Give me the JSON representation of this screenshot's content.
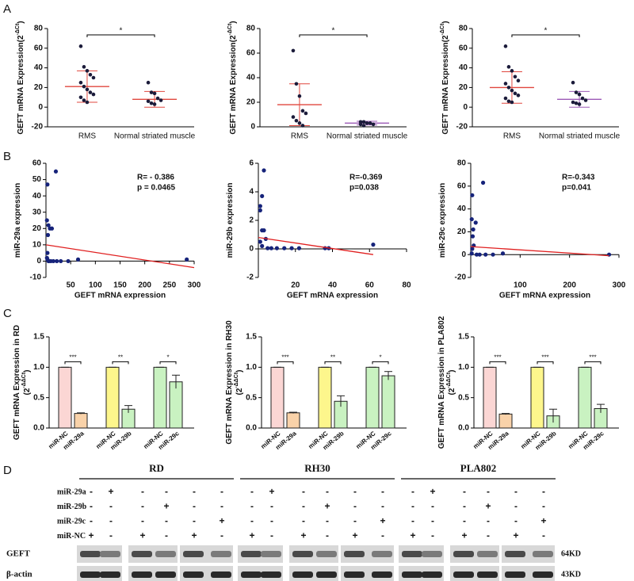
{
  "panel_labels": [
    "A",
    "B",
    "C",
    "D"
  ],
  "chart_data": [
    {
      "type": "dot",
      "ylabel": [
        [
          "GEFT mRNA Expression(2",
          "-ΔCt",
          ")"
        ]
      ],
      "ylim": [
        -20,
        80
      ],
      "yticks": [
        -20,
        0,
        20,
        40,
        60,
        80
      ],
      "significance": "*",
      "point_color": "#1b1b3a",
      "groups": [
        {
          "label": "RMS",
          "color": "#e0473e",
          "values": [
            62,
            41,
            37,
            33,
            30,
            25,
            21,
            18,
            15,
            13,
            10,
            7,
            5
          ],
          "mean": 21,
          "sd": 16
        },
        {
          "label": "Normal striated muscle",
          "color": "#e0473e",
          "values": [
            25,
            15,
            14,
            9,
            7,
            6,
            4,
            3
          ],
          "mean": 8,
          "sd": 8
        }
      ]
    },
    {
      "type": "dot",
      "ylabel": [
        [
          "GEFT mRNA Expression(2",
          "-ΔCt",
          ")"
        ]
      ],
      "ylim": [
        0,
        80
      ],
      "yticks": [
        0,
        20,
        40,
        60,
        80
      ],
      "significance": "*",
      "point_color": "#1b1b3a",
      "groups": [
        {
          "label": "RMS",
          "color": "#e0473e",
          "values": [
            62,
            35,
            25,
            13,
            11,
            8,
            5,
            3,
            1
          ],
          "mean": 18,
          "sd": 17
        },
        {
          "label": "Normal striated muscle",
          "color": "#9b59b6",
          "values": [
            4,
            4,
            3,
            3,
            2,
            2,
            1
          ],
          "mean": 3,
          "sd": 1.5
        }
      ]
    },
    {
      "type": "dot",
      "ylabel": [
        [
          "GEFT mRNA Expression(2",
          "-ΔCt",
          ")"
        ]
      ],
      "ylim": [
        -20,
        80
      ],
      "yticks": [
        -20,
        0,
        20,
        40,
        60,
        80
      ],
      "significance": "*",
      "point_color": "#1b1b3a",
      "groups": [
        {
          "label": "RMS",
          "color": "#e0473e",
          "values": [
            62,
            41,
            37,
            31,
            27,
            24,
            20,
            17,
            14,
            12,
            9,
            6,
            5
          ],
          "mean": 20,
          "sd": 16
        },
        {
          "label": "Normal striated muscle",
          "color": "#9b59b6",
          "values": [
            25,
            15,
            13,
            9,
            7,
            5,
            4,
            3
          ],
          "mean": 8,
          "sd": 8
        }
      ]
    },
    {
      "type": "scatter",
      "xlabel": "GEFT mRNA expression",
      "ylabel": [
        [
          "miR-29a expression"
        ]
      ],
      "annotations": [
        "R= - 0.386",
        "p = 0.0465"
      ],
      "xlim": [
        0,
        300
      ],
      "xticks": [
        50,
        100,
        150,
        200,
        250,
        300
      ],
      "ylim": [
        -10,
        60
      ],
      "yticks": [
        -10,
        0,
        10,
        20,
        30,
        40,
        50,
        60
      ],
      "color": "#16237a",
      "fit_color": "#e02020",
      "x": [
        2,
        3,
        4,
        5,
        3,
        8,
        12,
        20,
        2,
        3,
        5,
        6,
        10,
        15,
        22,
        30,
        45,
        65,
        285
      ],
      "y": [
        25,
        47,
        16,
        22,
        5,
        20,
        20,
        55,
        2,
        1,
        0,
        0,
        0,
        0,
        0,
        0,
        0,
        1,
        1
      ],
      "fit": {
        "x": [
          0,
          300
        ],
        "y": [
          10,
          -4
        ]
      }
    },
    {
      "type": "scatter",
      "xlabel": "GEFT mRNA expression",
      "ylabel": [
        [
          "miR-29b expression"
        ]
      ],
      "annotations": [
        "R=-0.369",
        "p=0.038"
      ],
      "xlim": [
        0,
        80
      ],
      "xticks": [
        20,
        40,
        60,
        80
      ],
      "ylim": [
        -2,
        6
      ],
      "yticks": [
        -2,
        0,
        2,
        4,
        6
      ],
      "color": "#16237a",
      "fit_color": "#e02020",
      "x": [
        3,
        2,
        1,
        1,
        2,
        3,
        4,
        1,
        2,
        5,
        7,
        10,
        14,
        18,
        22,
        36,
        38,
        62
      ],
      "y": [
        5.5,
        3.7,
        3.0,
        2.7,
        1.3,
        1.3,
        0.7,
        0.5,
        0.2,
        0.05,
        0.05,
        0.05,
        0.05,
        0.05,
        0.05,
        0.05,
        0.05,
        0.3
      ],
      "fit": {
        "x": [
          0,
          62
        ],
        "y": [
          0.8,
          -0.4
        ]
      }
    },
    {
      "type": "scatter",
      "xlabel": "GEFT mRNA expression",
      "ylabel": [
        [
          "miR-29c expression"
        ]
      ],
      "annotations": [
        "R=-0.343",
        "p=0.041"
      ],
      "xlim": [
        0,
        300
      ],
      "xticks": [
        100,
        200,
        300
      ],
      "ylim": [
        -20,
        80
      ],
      "yticks": [
        -20,
        0,
        20,
        40,
        60,
        80
      ],
      "color": "#16237a",
      "fit_color": "#e02020",
      "x": [
        2,
        3,
        5,
        4,
        10,
        25,
        6,
        3,
        2,
        12,
        18,
        30,
        45,
        65,
        280
      ],
      "y": [
        31,
        52,
        22,
        16,
        28,
        63,
        8,
        5,
        1,
        0,
        0,
        0,
        0,
        1,
        0
      ],
      "fit": {
        "x": [
          0,
          280
        ],
        "y": [
          7,
          -1
        ]
      }
    },
    {
      "type": "bar",
      "ylabel": [
        [
          "GEFT mRNA Expression in RD"
        ],
        [
          "(2",
          "-ΔΔCt",
          ")"
        ]
      ],
      "ylim": [
        0,
        1.5
      ],
      "yticks": [
        {
          "value": 0,
          "label": "0.0"
        },
        {
          "value": 0.5,
          "label": "0.5"
        },
        {
          "value": 1,
          "label": "1.0"
        },
        {
          "value": 1.5,
          "label": "1.5"
        }
      ],
      "categories": [
        "miR-NC",
        "miR-29a",
        "miR-NC",
        "miR-29b",
        "miR-NC",
        "miR-29c"
      ],
      "colors": [
        "#fbd6d4",
        "#f9d2a9",
        "#fdf68c",
        "#c9f2c1",
        "#c9f2c1",
        "#c9f2c1"
      ],
      "values": [
        1.0,
        0.24,
        1.0,
        0.31,
        1.0,
        0.76
      ],
      "errors": [
        0,
        0.01,
        0,
        0.06,
        0,
        0.11
      ],
      "significance": [
        "***",
        "**",
        "*"
      ]
    },
    {
      "type": "bar",
      "ylabel": [
        [
          "GEFT mRNA Expression in RH30"
        ],
        [
          "(2",
          "-ΔΔCt",
          ")"
        ]
      ],
      "ylim": [
        0,
        1.5
      ],
      "yticks": [
        {
          "value": 0,
          "label": "0.0"
        },
        {
          "value": 0.5,
          "label": "0.5"
        },
        {
          "value": 1,
          "label": "1.0"
        },
        {
          "value": 1.5,
          "label": "1.5"
        }
      ],
      "categories": [
        "miR-NC",
        "miR-29a",
        "miR-NC",
        "miR-29b",
        "miR-NC",
        "miR-29c"
      ],
      "colors": [
        "#fbd6d4",
        "#f9d2a9",
        "#fdf68c",
        "#c9f2c1",
        "#c9f2c1",
        "#c9f2c1"
      ],
      "values": [
        1.0,
        0.25,
        1.0,
        0.44,
        1.0,
        0.86
      ],
      "errors": [
        0,
        0.01,
        0,
        0.09,
        0,
        0.07
      ],
      "significance": [
        "***",
        "**",
        "*"
      ]
    },
    {
      "type": "bar",
      "ylabel": [
        [
          "GEFT mRNA Expression in PLA802"
        ],
        [
          "(2",
          "-ΔΔCt",
          ")"
        ]
      ],
      "ylim": [
        0,
        1.5
      ],
      "yticks": [
        {
          "value": 0,
          "label": "0.0"
        },
        {
          "value": 0.5,
          "label": "0.5"
        },
        {
          "value": 1,
          "label": "1.0"
        },
        {
          "value": 1.5,
          "label": "1.5"
        }
      ],
      "categories": [
        "miR-NC",
        "miR-29a",
        "miR-NC",
        "miR-29b",
        "miR-NC",
        "miR-29c"
      ],
      "colors": [
        "#fbd6d4",
        "#f9d2a9",
        "#fdf68c",
        "#c9f2c1",
        "#c9f2c1",
        "#c9f2c1"
      ],
      "values": [
        1.0,
        0.23,
        1.0,
        0.2,
        1.0,
        0.32
      ],
      "errors": [
        0,
        0.01,
        0,
        0.11,
        0,
        0.07
      ],
      "significance": [
        "***",
        "***",
        "***"
      ]
    }
  ],
  "blot": {
    "groups": [
      "RD",
      "RH30",
      "PLA802"
    ],
    "rows": [
      {
        "label": "miR-29a",
        "signs": [
          "-",
          "+",
          "-",
          "-",
          "-",
          "-"
        ]
      },
      {
        "label": "miR-29b",
        "signs": [
          "-",
          "-",
          "-",
          "+",
          "-",
          "-"
        ]
      },
      {
        "label": "miR-29c",
        "signs": [
          "-",
          "-",
          "-",
          "-",
          "-",
          "+"
        ]
      },
      {
        "label": "miR-NC",
        "signs": [
          "+",
          "-",
          "+",
          "-",
          "+",
          "-"
        ]
      }
    ],
    "bands": [
      {
        "label": "GEFT",
        "size": "64KD"
      },
      {
        "label": "β-actin",
        "size": "43KD"
      }
    ]
  }
}
